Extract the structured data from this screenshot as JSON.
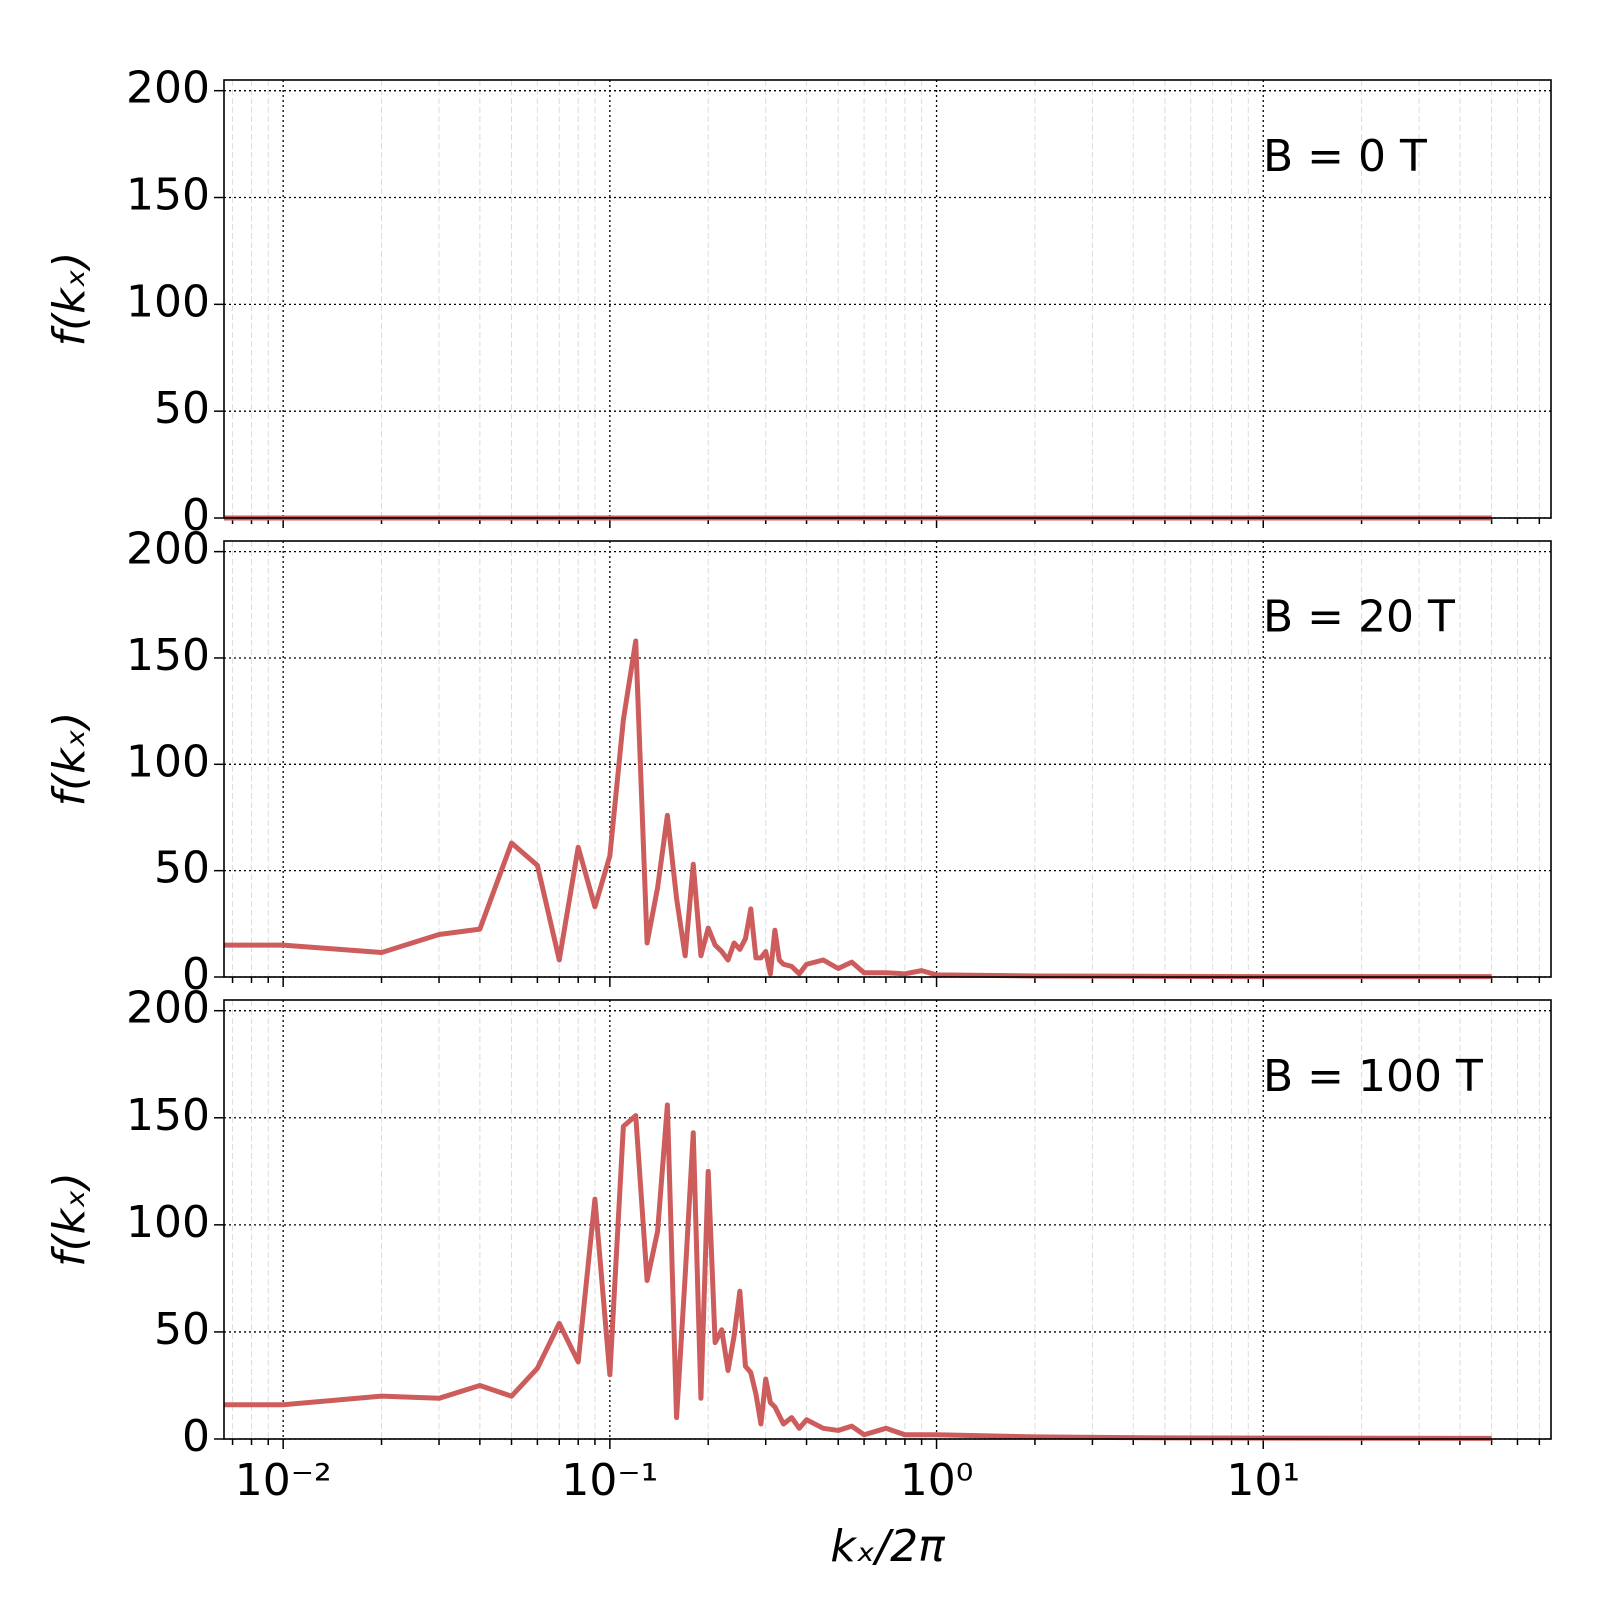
{
  "chart_data": [
    {
      "type": "line",
      "annotation": "B = 0 T",
      "ylabel": "f(kₓ)",
      "xscale": "log",
      "grid": true,
      "xlim": [
        0.00659,
        76
      ],
      "ylim": [
        0,
        205
      ],
      "xticks": [
        0.01,
        0.1,
        1,
        10
      ],
      "yticks": [
        0,
        50,
        100,
        150,
        200
      ],
      "color": "#cd5c5c",
      "x": [
        0.00659,
        50
      ],
      "values": [
        0,
        0
      ]
    },
    {
      "type": "line",
      "annotation": "B = 20 T",
      "ylabel": "f(kₓ)",
      "xscale": "log",
      "grid": true,
      "xlim": [
        0.00659,
        76
      ],
      "ylim": [
        0,
        205
      ],
      "xticks": [
        0.01,
        0.1,
        1,
        10
      ],
      "yticks": [
        0,
        50,
        100,
        150,
        200
      ],
      "color": "#cd5c5c",
      "x": [
        0.00659,
        0.01,
        0.02,
        0.03,
        0.04,
        0.05,
        0.06,
        0.07,
        0.08,
        0.09,
        0.1,
        0.11,
        0.12,
        0.13,
        0.14,
        0.15,
        0.16,
        0.17,
        0.18,
        0.19,
        0.2,
        0.21,
        0.22,
        0.23,
        0.24,
        0.25,
        0.26,
        0.27,
        0.28,
        0.29,
        0.3,
        0.31,
        0.32,
        0.33,
        0.34,
        0.36,
        0.38,
        0.4,
        0.45,
        0.5,
        0.55,
        0.6,
        0.7,
        0.8,
        0.9,
        1,
        2,
        5,
        10,
        50
      ],
      "values": [
        15,
        15,
        11.5,
        20,
        22.5,
        63,
        52.5,
        8,
        61,
        33,
        57,
        121,
        158,
        16,
        42,
        76,
        37,
        10,
        53,
        10,
        23,
        15,
        12,
        8,
        16,
        13,
        18,
        32,
        9,
        9,
        12,
        1.5,
        22,
        8,
        6,
        5,
        1.5,
        6,
        8,
        4,
        7,
        2,
        2,
        1.5,
        3,
        1,
        0.5,
        0.3,
        0.2,
        0.2
      ]
    },
    {
      "type": "line",
      "annotation": "B = 100 T",
      "ylabel": "f(kₓ)",
      "xlabel": "kₓ/2π",
      "xscale": "log",
      "grid": true,
      "xlim": [
        0.00659,
        76
      ],
      "ylim": [
        0,
        205
      ],
      "xticks": [
        {
          "value": 0.01,
          "label": "10⁻²"
        },
        {
          "value": 0.1,
          "label": "10⁻¹"
        },
        {
          "value": 1,
          "label": "10⁰"
        },
        {
          "value": 10,
          "label": "10¹"
        }
      ],
      "yticks": [
        0,
        50,
        100,
        150,
        200
      ],
      "color": "#cd5c5c",
      "x": [
        0.00659,
        0.01,
        0.02,
        0.03,
        0.04,
        0.05,
        0.06,
        0.07,
        0.08,
        0.09,
        0.1,
        0.11,
        0.12,
        0.13,
        0.14,
        0.15,
        0.16,
        0.17,
        0.18,
        0.19,
        0.2,
        0.21,
        0.22,
        0.23,
        0.24,
        0.25,
        0.26,
        0.27,
        0.28,
        0.29,
        0.3,
        0.31,
        0.32,
        0.34,
        0.36,
        0.38,
        0.4,
        0.45,
        0.5,
        0.55,
        0.6,
        0.7,
        0.8,
        1,
        2,
        5,
        50
      ],
      "values": [
        16,
        16,
        20,
        19,
        25,
        20,
        33,
        54,
        36,
        112,
        30,
        146,
        151,
        74,
        97,
        156,
        10,
        76,
        143,
        19,
        125,
        45,
        51,
        32,
        48,
        69,
        34,
        31,
        21,
        7,
        28,
        17,
        15,
        7,
        10,
        5,
        9,
        5,
        4,
        6,
        2,
        5,
        2,
        2,
        1,
        0.5,
        0.3
      ]
    }
  ]
}
